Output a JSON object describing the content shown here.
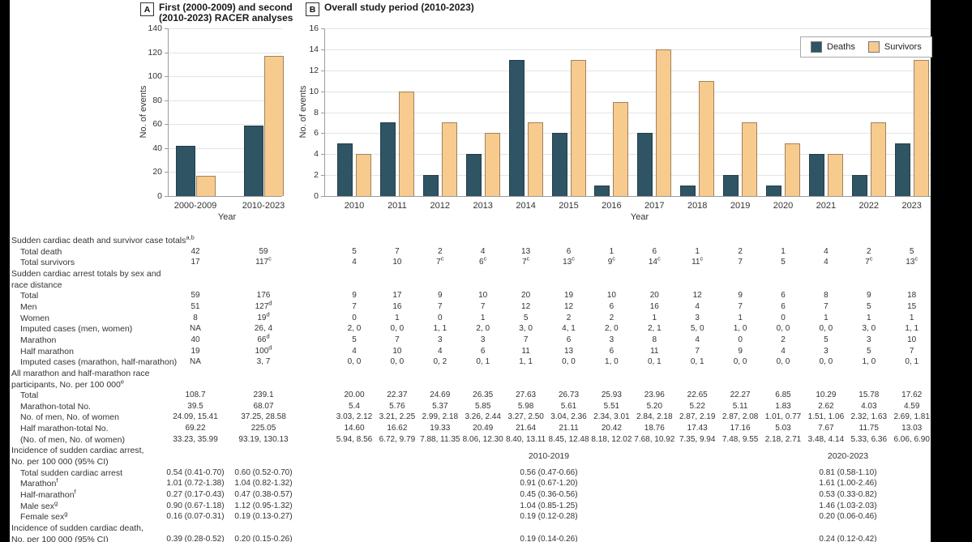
{
  "colors": {
    "deaths": "#2F5463",
    "survivors": "#F7CA8E"
  },
  "panel_a": {
    "badge": "A",
    "title_lines": [
      "First (2000-2009) and second",
      "(2010-2023) RACER analyses"
    ],
    "ylabel": "No. of events",
    "xlabel": "Year"
  },
  "panel_b": {
    "badge": "B",
    "title": "Overall study period (2010-2023)",
    "ylabel": "No. of events",
    "xlabel": "Year",
    "legend": {
      "deaths": "Deaths",
      "survivors": "Survivors"
    }
  },
  "chart_data": [
    {
      "type": "bar",
      "title": "First (2000-2009) and second (2010-2023) RACER analyses",
      "categories": [
        "2000-2009",
        "2010-2023"
      ],
      "series": [
        {
          "name": "Deaths",
          "values": [
            42,
            59
          ]
        },
        {
          "name": "Survivors",
          "values": [
            17,
            117
          ]
        }
      ],
      "xlabel": "Year",
      "ylabel": "No. of events",
      "ylim": [
        0,
        140
      ],
      "ytick_step": 20,
      "grid": true,
      "legend_position": "none"
    },
    {
      "type": "bar",
      "title": "Overall study period (2010-2023)",
      "categories": [
        "2010",
        "2011",
        "2012",
        "2013",
        "2014",
        "2015",
        "2016",
        "2017",
        "2018",
        "2019",
        "2020",
        "2021",
        "2022",
        "2023"
      ],
      "series": [
        {
          "name": "Deaths",
          "values": [
            5,
            7,
            2,
            4,
            13,
            6,
            1,
            6,
            1,
            2,
            1,
            4,
            2,
            5
          ]
        },
        {
          "name": "Survivors",
          "values": [
            4,
            10,
            7,
            6,
            7,
            13,
            9,
            14,
            11,
            7,
            5,
            4,
            7,
            13
          ]
        }
      ],
      "xlabel": "Year",
      "ylabel": "No. of events",
      "ylim": [
        0,
        16
      ],
      "ytick_step": 2,
      "grid": true,
      "legend_position": "top-right"
    }
  ],
  "table": {
    "rows": [
      {
        "kind": "section",
        "lines": [
          "Sudden cardiac death and survivor case totals^a,b"
        ]
      },
      {
        "kind": "data",
        "label": "Total death",
        "cols": "full",
        "values": [
          "42",
          "59",
          "5",
          "7",
          "2",
          "4",
          "13",
          "6",
          "1",
          "6",
          "1",
          "2",
          "1",
          "4",
          "2",
          "5"
        ]
      },
      {
        "kind": "data",
        "label": "Total survivors",
        "cols": "full",
        "values": [
          "17",
          "117^c",
          "4",
          "10",
          "7^c",
          "6^c",
          "7^c",
          "13^c",
          "9^c",
          "14^c",
          "11^c",
          "7",
          "5",
          "4",
          "7^c",
          "13^c"
        ]
      },
      {
        "kind": "section",
        "lines": [
          "Sudden cardiac arrest totals by sex and",
          "race distance"
        ]
      },
      {
        "kind": "data",
        "label": "Total",
        "cols": "full",
        "values": [
          "59",
          "176",
          "9",
          "17",
          "9",
          "10",
          "20",
          "19",
          "10",
          "20",
          "12",
          "9",
          "6",
          "8",
          "9",
          "18"
        ]
      },
      {
        "kind": "data",
        "label": "Men",
        "cols": "full",
        "values": [
          "51",
          "127^d",
          "7",
          "16",
          "7",
          "7",
          "12",
          "12",
          "6",
          "16",
          "4",
          "7",
          "6",
          "7",
          "5",
          "15"
        ]
      },
      {
        "kind": "data",
        "label": "Women",
        "cols": "full",
        "values": [
          "8",
          "19^d",
          "0",
          "1",
          "0",
          "1",
          "5",
          "2",
          "2",
          "1",
          "3",
          "1",
          "0",
          "1",
          "1",
          "1"
        ]
      },
      {
        "kind": "data",
        "label": "Imputed cases (men, women)",
        "cols": "full",
        "values": [
          "NA",
          "26, 4",
          "2, 0",
          "0, 0",
          "1, 1",
          "2, 0",
          "3, 0",
          "4, 1",
          "2, 0",
          "2, 1",
          "5, 0",
          "1, 0",
          "0, 0",
          "0, 0",
          "3, 0",
          "1, 1"
        ]
      },
      {
        "kind": "data",
        "label": "Marathon",
        "cols": "full",
        "values": [
          "40",
          "66^d",
          "5",
          "7",
          "3",
          "3",
          "7",
          "6",
          "3",
          "8",
          "4",
          "0",
          "2",
          "5",
          "3",
          "10"
        ]
      },
      {
        "kind": "data",
        "label": "Half marathon",
        "cols": "full",
        "values": [
          "19",
          "100^d",
          "4",
          "10",
          "4",
          "6",
          "11",
          "13",
          "6",
          "11",
          "7",
          "9",
          "4",
          "3",
          "5",
          "7"
        ]
      },
      {
        "kind": "data",
        "label": "Imputed cases (marathon, half-marathon)",
        "cols": "full",
        "values": [
          "NA",
          "3, 7",
          "0, 0",
          "0, 0",
          "0, 2",
          "0, 1",
          "1, 1",
          "0, 0",
          "1, 0",
          "0, 1",
          "0, 1",
          "0, 0",
          "0, 0",
          "0, 0",
          "1, 0",
          "0, 1"
        ]
      },
      {
        "kind": "section",
        "lines": [
          "All marathon and half-marathon race",
          "participants, No. per 100 000^e"
        ]
      },
      {
        "kind": "data",
        "label": "Total",
        "cols": "full",
        "values": [
          "108.7",
          "239.1",
          "20.00",
          "22.37",
          "24.69",
          "26.35",
          "27.63",
          "26.73",
          "25.93",
          "23.96",
          "22.65",
          "22.27",
          "6.85",
          "10.29",
          "15.78",
          "17.62"
        ]
      },
      {
        "kind": "data",
        "label": "Marathon-total No.",
        "cols": "full",
        "values": [
          "39.5",
          "68.07",
          "5.4",
          "5.76",
          "5.37",
          "5.85",
          "5.98",
          "5.61",
          "5.51",
          "5.20",
          "5.22",
          "5.11",
          "1.83",
          "2.62",
          "4.03",
          "4.59"
        ]
      },
      {
        "kind": "data",
        "label": "No. of men, No. of women",
        "cols": "full",
        "values": [
          "24.09, 15.41",
          "37.25, 28.58",
          "3.03, 2.12",
          "3.21, 2.25",
          "2.99, 2.18",
          "3.26, 2.44",
          "3.27, 2.50",
          "3.04, 2.36",
          "2.34, 3.01",
          "2.84, 2.18",
          "2.87, 2.19",
          "2.87, 2.08",
          "1.01, 0.77",
          "1.51, 1.06",
          "2.32, 1.63",
          "2.69, 1.81"
        ]
      },
      {
        "kind": "data",
        "label": "Half marathon-total No.",
        "cols": "full",
        "values": [
          "69.22",
          "225.05",
          "14.60",
          "16.62",
          "19.33",
          "20.49",
          "21.64",
          "21.11",
          "20.42",
          "18.76",
          "17.43",
          "17.16",
          "5.03",
          "7.67",
          "11.75",
          "13.03"
        ]
      },
      {
        "kind": "data",
        "label": "(No. of men, No. of women)",
        "cols": "full",
        "values": [
          "33.23, 35.99",
          "93.19, 130.13",
          "5.94, 8.56",
          "6.72, 9.79",
          "7.88, 11.35",
          "8.06, 12.30",
          "8.40, 13.11",
          "8.45, 12.48",
          "8.18, 12.02",
          "7.68, 10.92",
          "7.35, 9.94",
          "7.48, 9.55",
          "2.18, 2.71",
          "3.48, 4.14",
          "5.33, 6.36",
          "6.06, 6.90"
        ]
      },
      {
        "kind": "section",
        "lines": [
          "Incidence of sudden cardiac arrest,",
          "No. per 100 000 (95% CI)"
        ],
        "period_headers": [
          "2010-2019",
          "2020-2023"
        ]
      },
      {
        "kind": "data",
        "label": "Total sudden cardiac arrest",
        "cols": "periods",
        "values": [
          "0.54 (0.41-0.70)",
          "0.60 (0.52-0.70)",
          "0.56 (0.47-0.66)",
          "0.81 (0.58-1.10)"
        ]
      },
      {
        "kind": "data",
        "label": "Marathon^f",
        "cols": "periods",
        "values": [
          "1.01 (0.72-1.38)",
          "1.04 (0.82-1.32)",
          "0.91 (0.67-1.20)",
          "1.61 (1.00-2.46)"
        ]
      },
      {
        "kind": "data",
        "label": "Half-marathon^f",
        "cols": "periods",
        "values": [
          "0.27 (0.17-0.43)",
          "0.47 (0.38-0.57)",
          "0.45 (0.36-0.56)",
          "0.53 (0.33-0.82)"
        ]
      },
      {
        "kind": "data",
        "label": "Male sex^g",
        "cols": "periods",
        "values": [
          "0.90 (0.67-1.18)",
          "1.12 (0.95-1.32)",
          "1.04 (0.85-1.25)",
          "1.46 (1.03-2.03)"
        ]
      },
      {
        "kind": "data",
        "label": "Female sex^g",
        "cols": "periods",
        "values": [
          "0.16 (0.07-0.31)",
          "0.19 (0.13-0.27)",
          "0.19 (0.12-0.28)",
          "0.20 (0.06-0.46)"
        ]
      },
      {
        "kind": "section",
        "lines": [
          "Incidence of sudden cardiac death,",
          "No. per 100 000 (95% CI)"
        ],
        "values_line": 1,
        "cols": "periods",
        "values": [
          "0.39 (0.28-0.52)",
          "0.20 (0.15-0.26)",
          "0.19 (0.14-0.26)",
          "0.24 (0.12-0.42)"
        ]
      }
    ]
  }
}
